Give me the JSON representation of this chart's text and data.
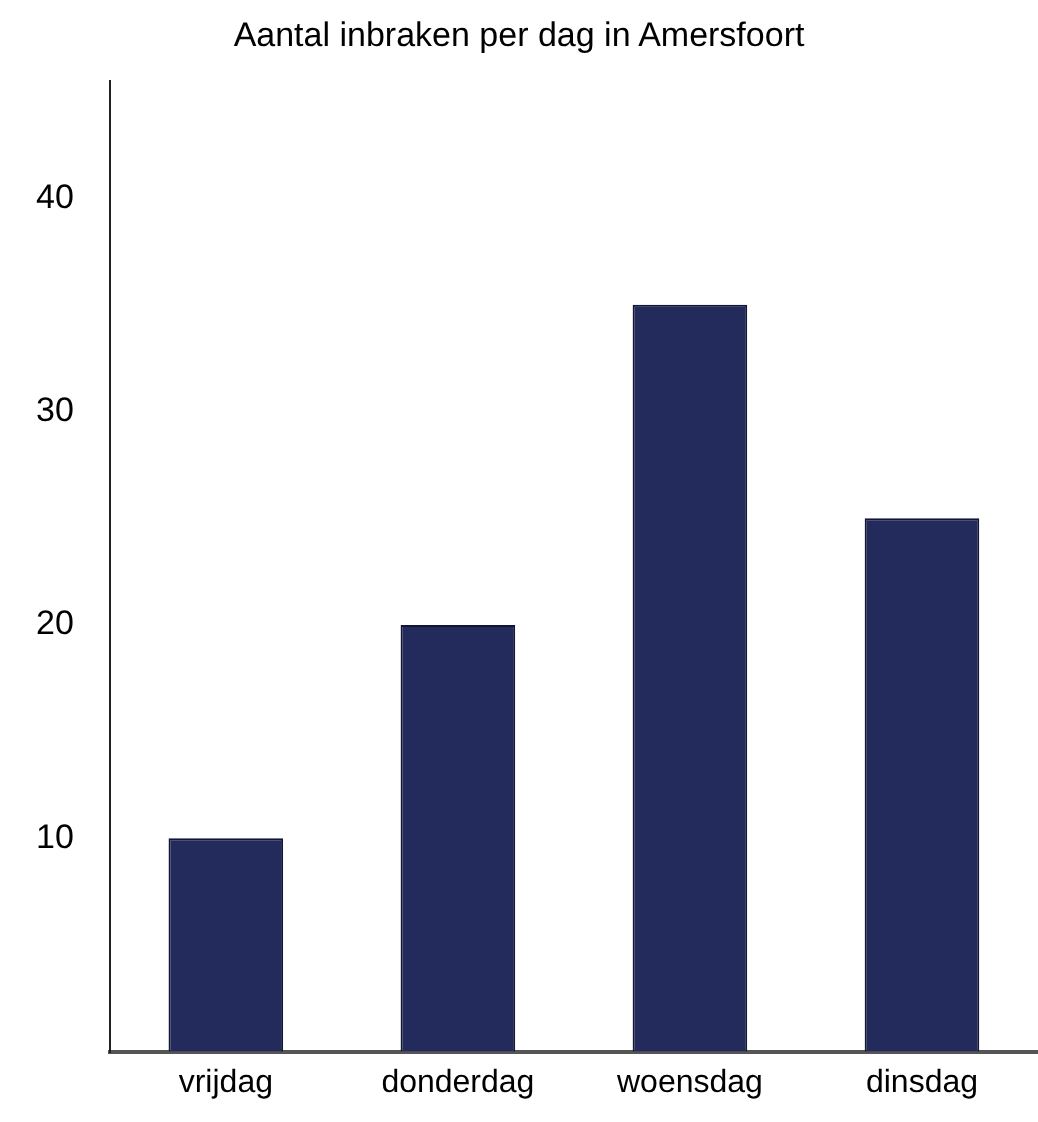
{
  "chart_data": {
    "type": "bar",
    "title": "Aantal inbraken per dag in Amersfoort",
    "categories": [
      "vrijdag",
      "donderdag",
      "woensdag",
      "dinsdag"
    ],
    "values": [
      10,
      20,
      35,
      25
    ],
    "color": "#232a5c",
    "ylim": [
      0,
      45.5
    ],
    "yticks": [
      10,
      20,
      30,
      40
    ],
    "grid": false,
    "legend": false
  }
}
